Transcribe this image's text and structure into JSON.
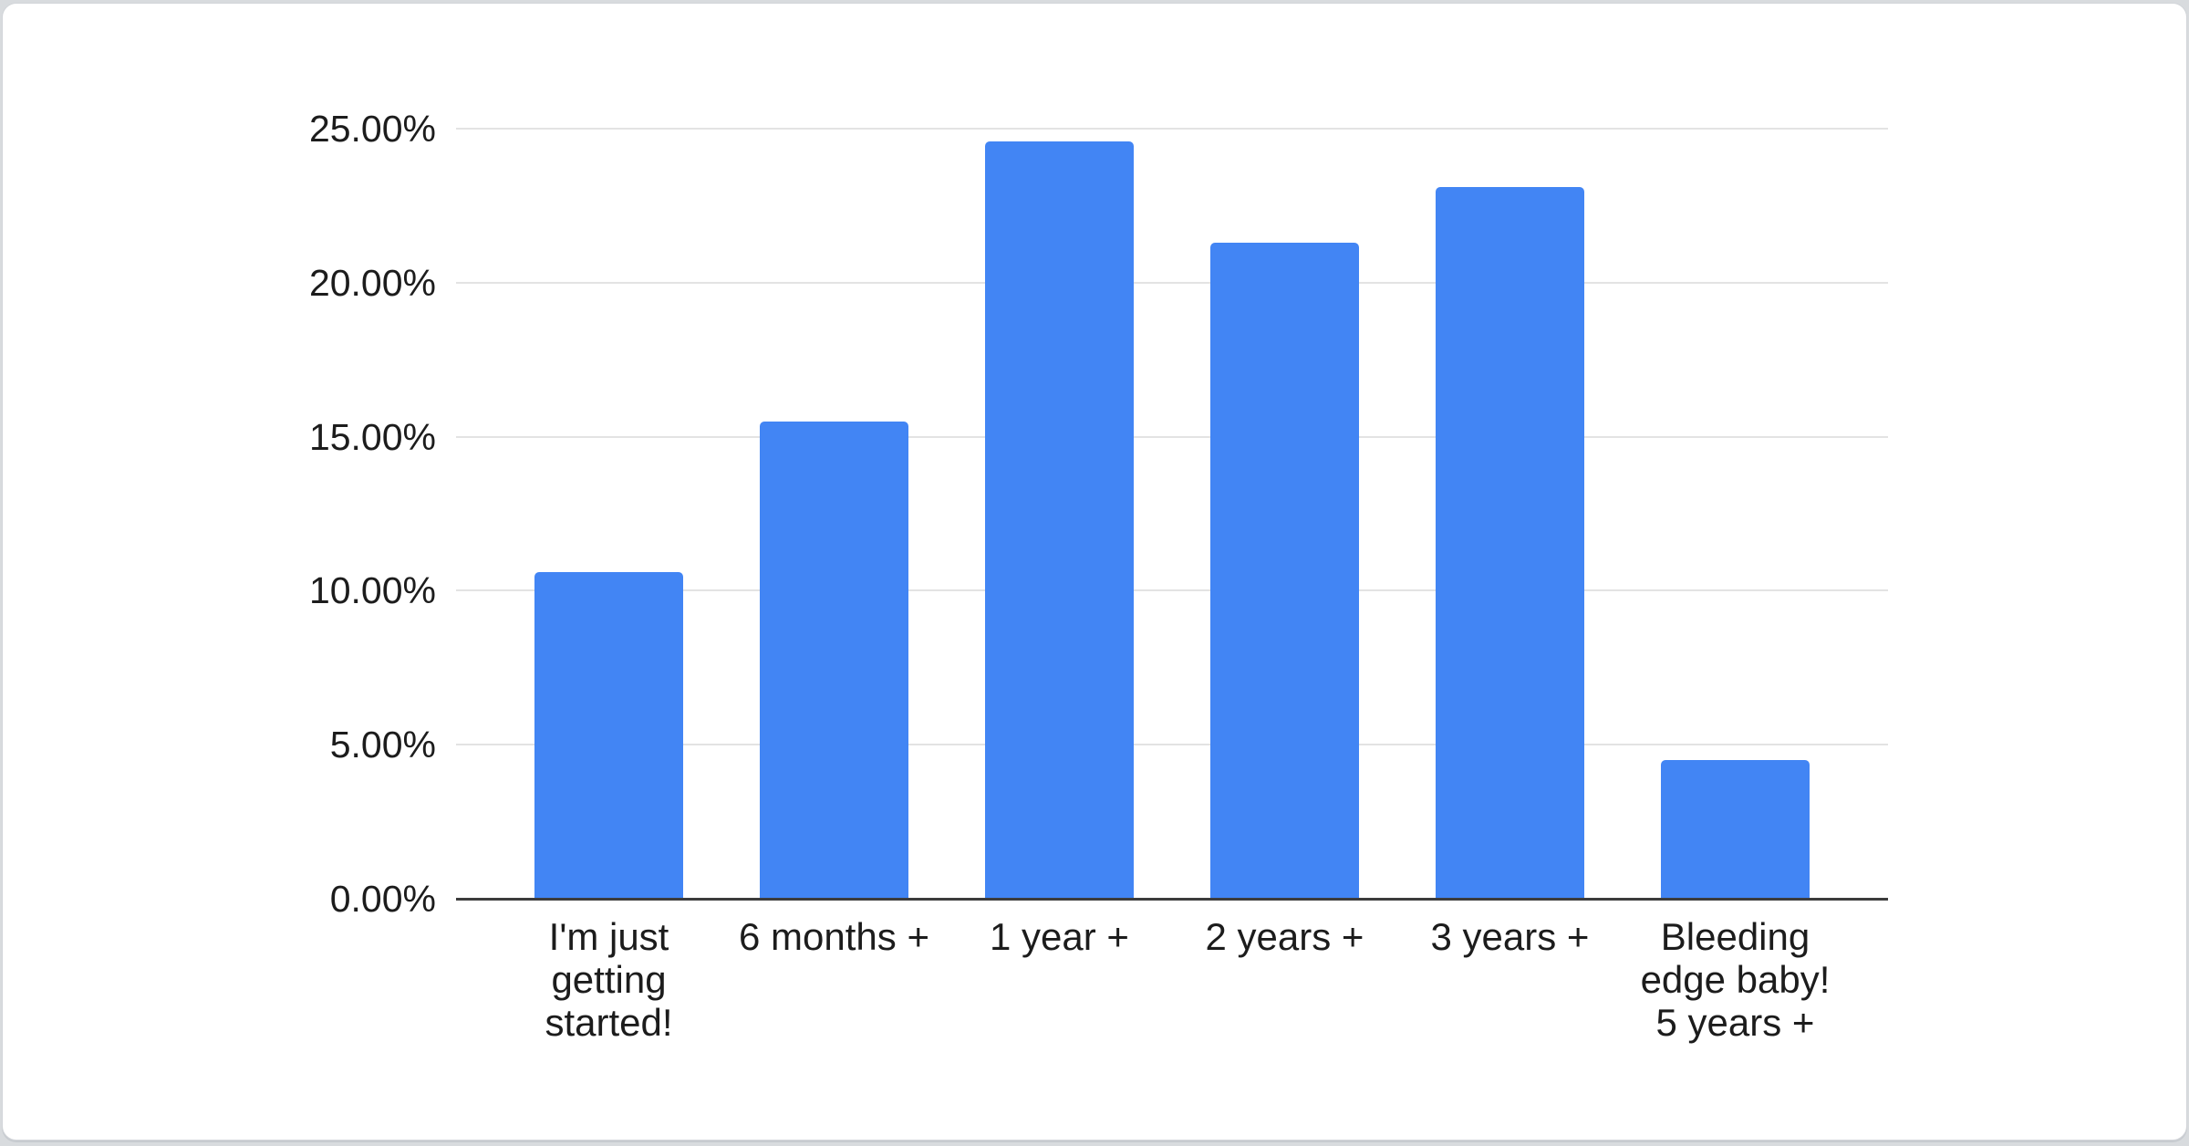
{
  "chart_data": {
    "type": "bar",
    "title": "",
    "categories": [
      "I'm just getting started!",
      "6 months +",
      "1 year +",
      "2 years +",
      "3 years +",
      "Bleeding edge baby! 5 years +"
    ],
    "category_lines": [
      [
        "I'm just",
        "getting",
        "started!"
      ],
      [
        "6 months +"
      ],
      [
        "1 year +"
      ],
      [
        "2 years +"
      ],
      [
        "3 years +"
      ],
      [
        "Bleeding",
        "edge baby!",
        "5 years +"
      ]
    ],
    "values": [
      10.6,
      15.5,
      24.6,
      21.3,
      23.1,
      4.5
    ],
    "unit": "%",
    "xlabel": "",
    "ylabel": "",
    "ylim": [
      0,
      25
    ],
    "y_ticks": [
      "0.00%",
      "5.00%",
      "10.00%",
      "15.00%",
      "20.00%",
      "25.00%"
    ],
    "y_tick_values": [
      0,
      5,
      10,
      15,
      20,
      25
    ],
    "grid": true,
    "legend_position": "none"
  },
  "colors": {
    "bar": "#4285f4",
    "gridline": "#e3e3e3",
    "axis": "#3c3c3c",
    "text": "#1c1c1c",
    "card_background": "#ffffff",
    "page_background": "#d8dbde",
    "card_border": "#d2d5d9"
  }
}
